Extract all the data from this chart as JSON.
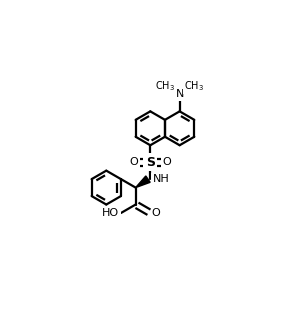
{
  "background_color": "#ffffff",
  "line_color": "#000000",
  "line_width": 1.6,
  "figsize": [
    2.85,
    3.12
  ],
  "dpi": 100,
  "xlim": [
    0,
    285
  ],
  "ylim": [
    0,
    312
  ],
  "BL": 22
}
